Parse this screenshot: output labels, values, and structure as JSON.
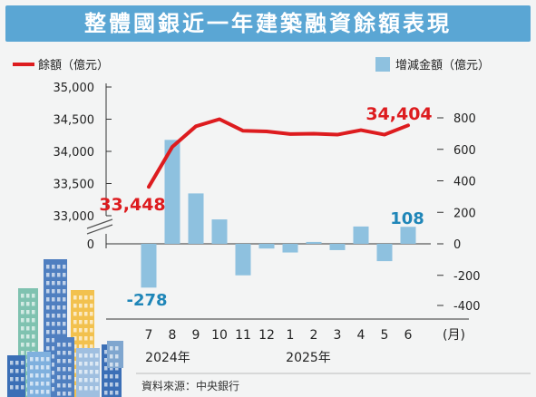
{
  "title": "整體國銀近一年建築融資餘額表現",
  "source": "資料來源：中央銀行",
  "colors": {
    "title_bg": "#5aa6d4",
    "line": "#dd1c1f",
    "bar": "#8ec1df",
    "label_red": "#dd1c1f",
    "label_blue": "#1f86b8"
  },
  "chart_data": {
    "type": "bar+line",
    "categories": [
      "7",
      "8",
      "9",
      "10",
      "11",
      "12",
      "1",
      "2",
      "3",
      "4",
      "5",
      "6"
    ],
    "x_unit": "(月)",
    "year_labels": [
      "2024年",
      "2025年"
    ],
    "series": [
      {
        "name": "餘額（億元）",
        "type": "line",
        "axis": "left",
        "values": [
          33448,
          34070,
          34390,
          34500,
          34320,
          34310,
          34270,
          34275,
          34260,
          34330,
          34260,
          34404
        ]
      },
      {
        "name": "增減金額（億元）",
        "type": "bar",
        "axis": "right",
        "values": [
          -278,
          660,
          320,
          155,
          -200,
          -30,
          -55,
          12,
          -40,
          110,
          -110,
          108
        ]
      }
    ],
    "left_axis": {
      "ticks": [
        "35,000",
        "34,500",
        "34,000",
        "33,500",
        "33,000",
        "0"
      ],
      "ylim": [
        33000,
        35000
      ],
      "broken": true
    },
    "right_axis": {
      "ticks": [
        "800",
        "600",
        "400",
        "200",
        "0",
        "-200",
        "-400"
      ],
      "ylim": [
        -400,
        800
      ]
    },
    "annotations": [
      {
        "text": "33,448",
        "series": "餘額（億元）",
        "category": "7"
      },
      {
        "text": "34,404",
        "series": "餘額（億元）",
        "category": "6"
      },
      {
        "text": "-278",
        "series": "增減金額（億元）",
        "category": "7"
      },
      {
        "text": "108",
        "series": "增減金額（億元）",
        "category": "6"
      }
    ]
  }
}
